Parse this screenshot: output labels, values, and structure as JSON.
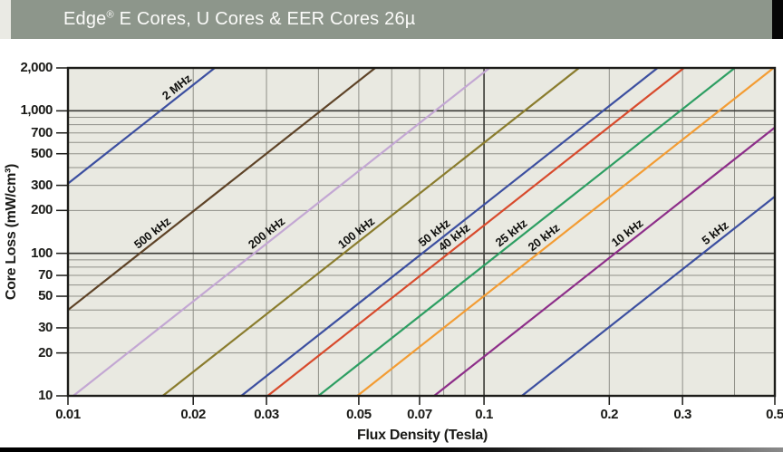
{
  "header": {
    "title_brand": "Edge",
    "title_reg": "®",
    "title_rest": " E Cores, U Cores & EER Cores 26µ",
    "bg_color": "#8D968B",
    "left_strip_color": "#EAEAE4",
    "corner_block_color": "#060606",
    "text_color": "#FBFBF9"
  },
  "bottom_bar": {
    "left_color": "#000000",
    "right_color": "#8A8A8A"
  },
  "chart_data": {
    "type": "line",
    "title": "Edge® E Cores, U Cores & EER Cores 26µ",
    "xlabel": "Flux Density (Tesla)",
    "ylabel": "Core Loss (mW/cm³)",
    "x_scale": "log",
    "y_scale": "log",
    "xlim": [
      0.01,
      0.5
    ],
    "ylim": [
      10,
      2000
    ],
    "grid": {
      "on": true,
      "background": "#E9E9E1",
      "minor_color": "#8F8F88",
      "major_color": "#3A3A35",
      "border_color": "#1C1C19"
    },
    "x_ticks": [
      {
        "value": 0.01,
        "label": "0.01"
      },
      {
        "value": 0.02,
        "label": "0.02"
      },
      {
        "value": 0.03,
        "label": "0.03"
      },
      {
        "value": 0.05,
        "label": "0.05"
      },
      {
        "value": 0.07,
        "label": "0.07"
      },
      {
        "value": 0.1,
        "label": "0.1"
      },
      {
        "value": 0.2,
        "label": "0.2"
      },
      {
        "value": 0.3,
        "label": "0.3"
      },
      {
        "value": 0.5,
        "label": "0.5"
      }
    ],
    "y_ticks": [
      {
        "value": 2000,
        "label": "2,000"
      },
      {
        "value": 1000,
        "label": "1,000"
      },
      {
        "value": 700,
        "label": "700"
      },
      {
        "value": 500,
        "label": "500"
      },
      {
        "value": 300,
        "label": "300"
      },
      {
        "value": 200,
        "label": "200"
      },
      {
        "value": 100,
        "label": "100"
      },
      {
        "value": 70,
        "label": "70"
      },
      {
        "value": 50,
        "label": "50"
      },
      {
        "value": 30,
        "label": "30"
      },
      {
        "value": 20,
        "label": "20"
      },
      {
        "value": 10,
        "label": "10"
      }
    ],
    "loss_exponent": 2.3,
    "series_note": "Each curve is a straight line in log-log space: loss = 10 * (B / b_at_10mw)^loss_exponent (mW/cm³). b_at_10mw = flux density (Tesla) where the curve crosses 10 mW/cm³.",
    "series": [
      {
        "label": "2 MHz",
        "color": "#3C4FA0",
        "b_at_10mw": 0.00225,
        "loss_at_0p01T": 310,
        "label_at_loss": 1350
      },
      {
        "label": "500 kHz",
        "color": "#5E4327",
        "b_at_10mw": 0.00547,
        "loss_at_0p01T": 40,
        "label_at_loss": 128
      },
      {
        "label": "200 kHz",
        "color": "#C3A7D3",
        "b_at_10mw": 0.0103,
        "loss_at_0p01T": 9.4,
        "label_at_loss": 128
      },
      {
        "label": "100 kHz",
        "color": "#8A7C2D",
        "b_at_10mw": 0.0169,
        "loss_at_0p01T": 3.0,
        "label_at_loss": 128
      },
      {
        "label": "50 kHz",
        "color": "#3C4FA0",
        "b_at_10mw": 0.0261,
        "loss_at_0p01T": 1.1,
        "label_at_loss": 128
      },
      {
        "label": "40 kHz",
        "color": "#D84A2C",
        "b_at_10mw": 0.0302,
        "loss_at_0p01T": 0.79,
        "label_at_loss": 118
      },
      {
        "label": "25 kHz",
        "color": "#2D9E62",
        "b_at_10mw": 0.04,
        "loss_at_0p01T": 0.41,
        "label_at_loss": 128
      },
      {
        "label": "20 kHz",
        "color": "#F39C33",
        "b_at_10mw": 0.0496,
        "loss_at_0p01T": 0.25,
        "label_at_loss": 118
      },
      {
        "label": "10 kHz",
        "color": "#8D2E89",
        "b_at_10mw": 0.0759,
        "loss_at_0p01T": 0.094,
        "label_at_loss": 128
      },
      {
        "label": "5 kHz",
        "color": "#3C4FA0",
        "b_at_10mw": 0.1233,
        "loss_at_0p01T": 0.031,
        "label_at_loss": 128
      }
    ]
  }
}
